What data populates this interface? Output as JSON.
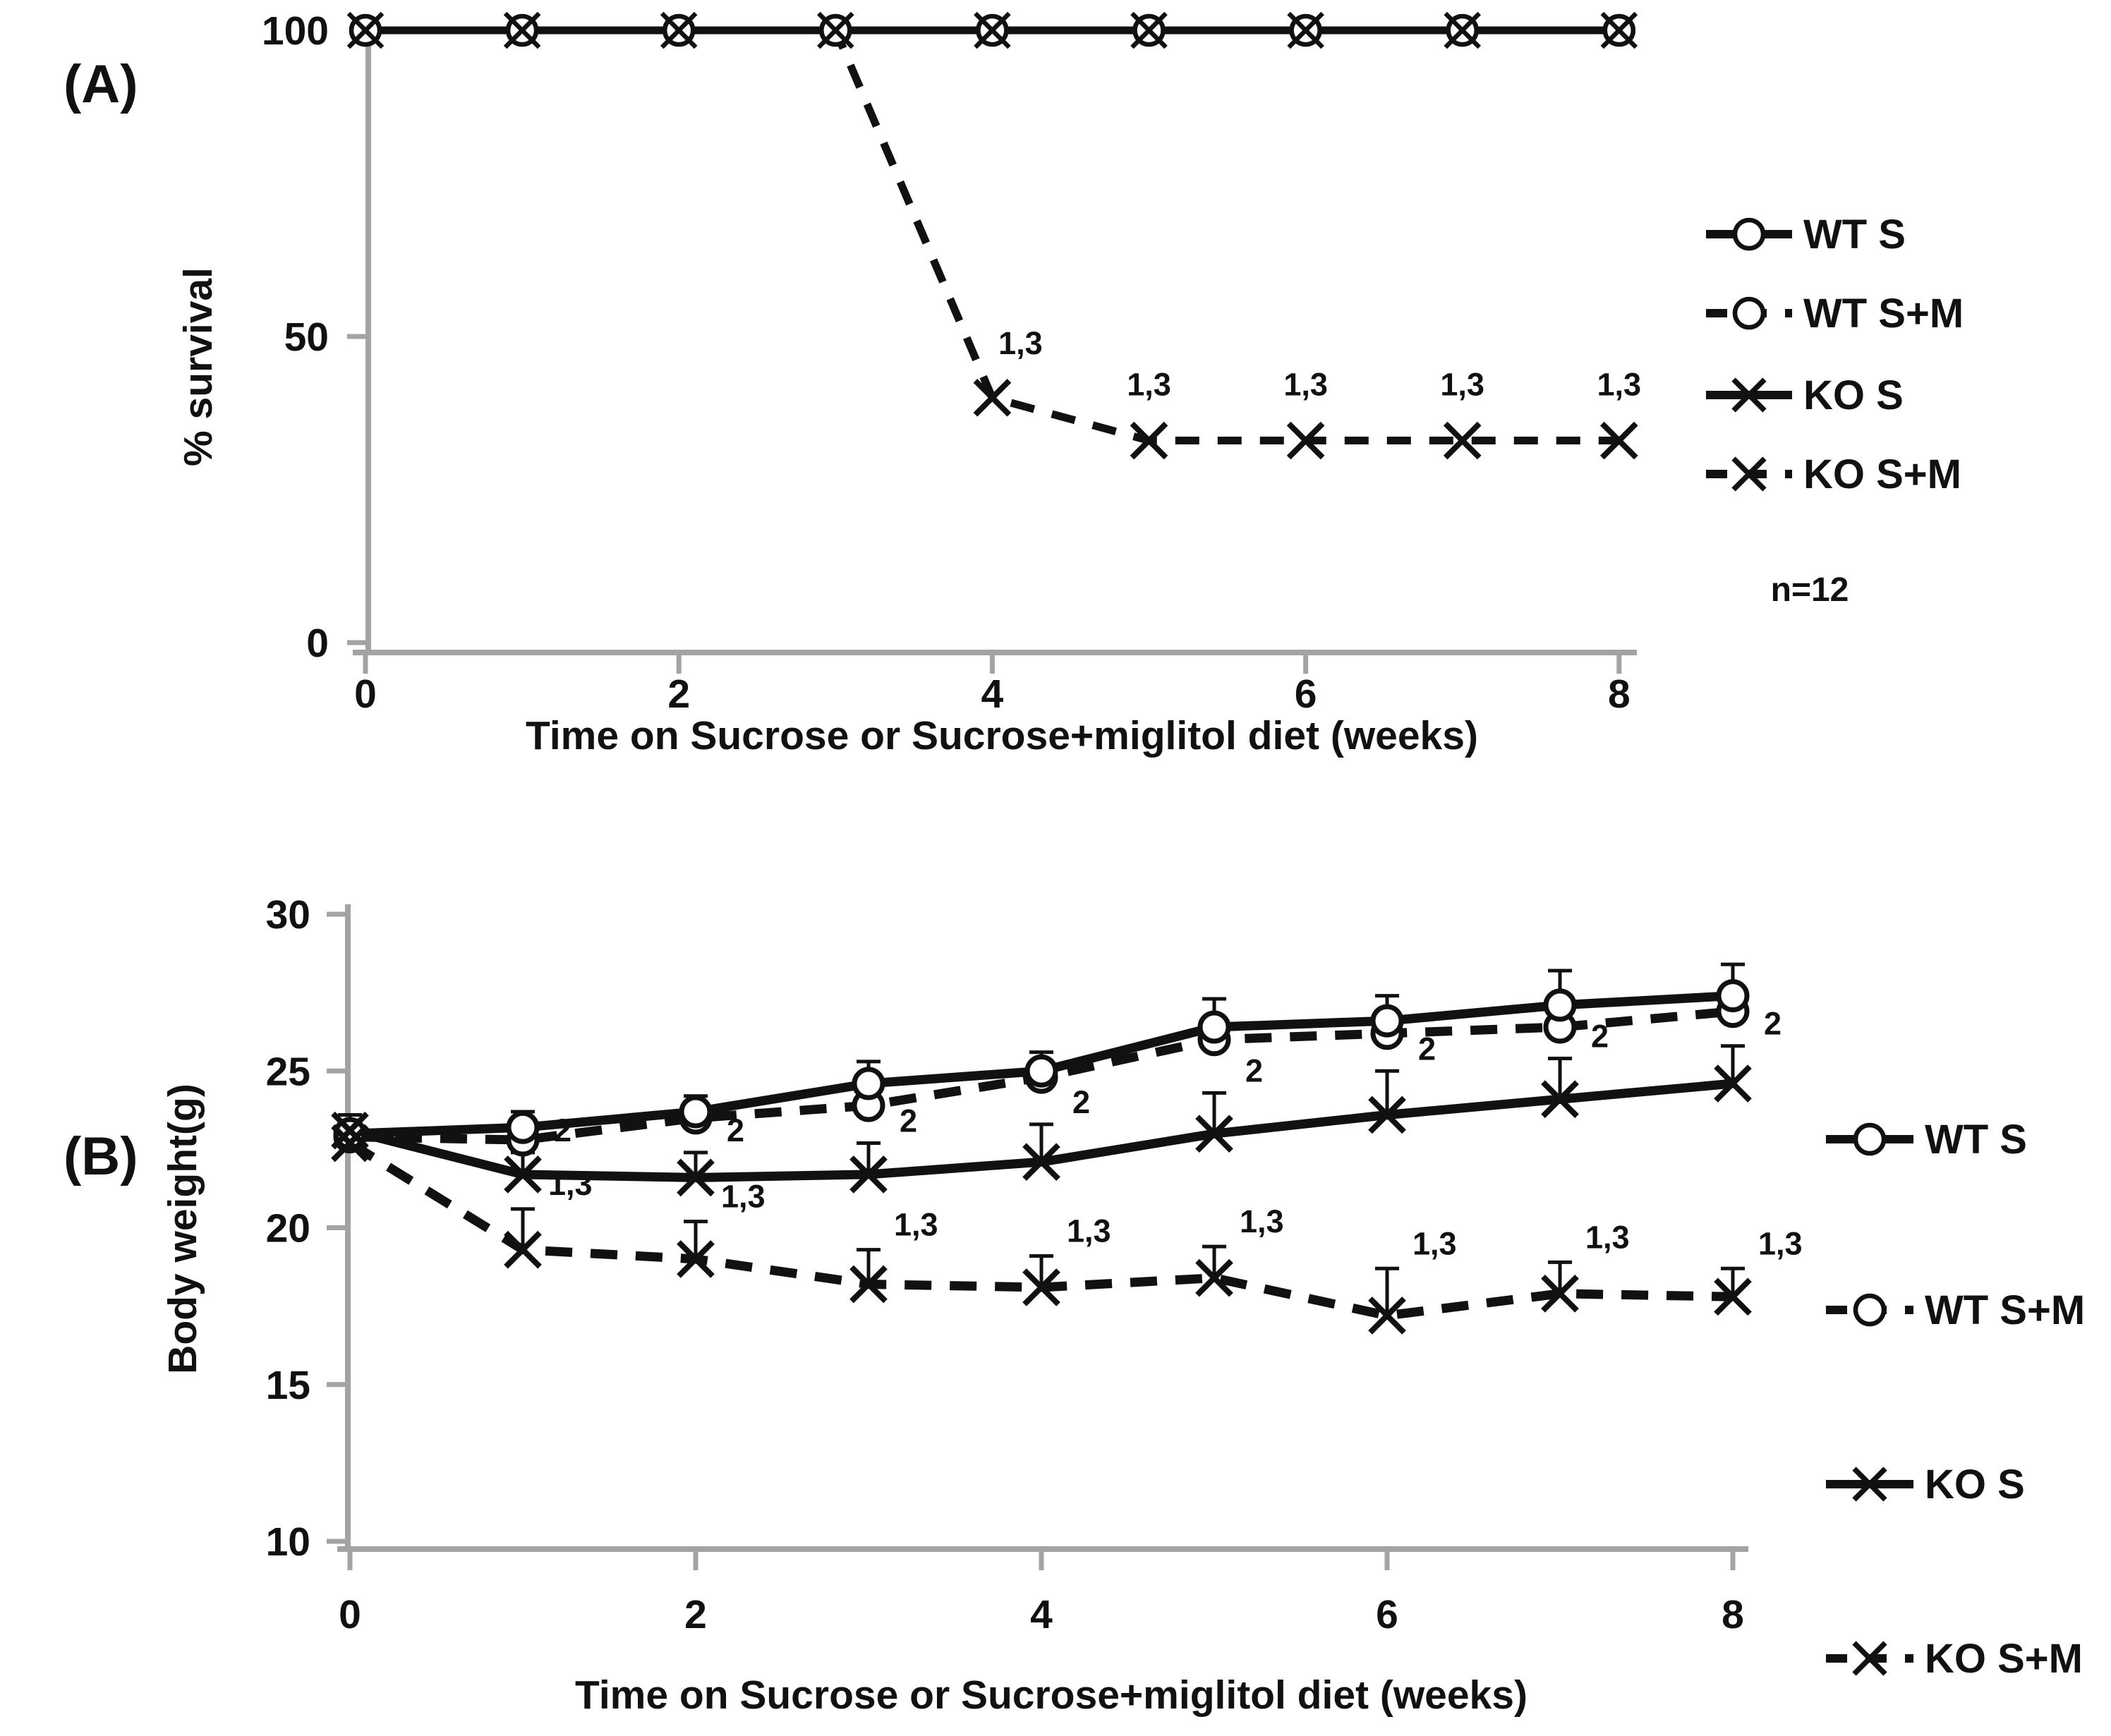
{
  "figure": {
    "panel_a_label": "(A)",
    "panel_b_label": "(B)",
    "note": "n=12"
  },
  "colors": {
    "ink": "#111111",
    "axis": "#a3a3a3",
    "marker_fill": "#ffffff"
  },
  "chart_data": [
    {
      "type": "line",
      "panel": "A",
      "xlabel": "Time on Sucrose or Sucrose+miglitol diet (weeks)",
      "ylabel": "% survival",
      "x": [
        0,
        1,
        2,
        3,
        4,
        5,
        6,
        7,
        8
      ],
      "x_tick_labels": [
        0,
        2,
        4,
        6,
        8
      ],
      "ylim": [
        0,
        100
      ],
      "y_tick_labels": [
        100,
        50,
        0
      ],
      "grid": "off",
      "legend_position": "right",
      "note": "n=12",
      "series": [
        {
          "name": "WT S",
          "line": "solid",
          "marker": "circle",
          "values": [
            100,
            100,
            100,
            100,
            100,
            100,
            100,
            100,
            100
          ]
        },
        {
          "name": "WT S+M",
          "line": "dashed",
          "marker": "circle",
          "values": [
            100,
            100,
            100,
            100,
            100,
            100,
            100,
            100,
            100
          ]
        },
        {
          "name": "KO S",
          "line": "solid",
          "marker": "x",
          "values": [
            100,
            100,
            100,
            100,
            100,
            100,
            100,
            100,
            100
          ]
        },
        {
          "name": "KO S+M",
          "line": "dashed",
          "marker": "x",
          "values": [
            100,
            100,
            100,
            100,
            40,
            33,
            33,
            33,
            33
          ],
          "annotations": [
            {
              "week": 4,
              "text": "1,3"
            },
            {
              "week": 5,
              "text": "1,3"
            },
            {
              "week": 6,
              "text": "1,3"
            },
            {
              "week": 7,
              "text": "1,3"
            },
            {
              "week": 8,
              "text": "1,3"
            }
          ]
        }
      ]
    },
    {
      "type": "line",
      "panel": "B",
      "xlabel": "Time on Sucrose or Sucrose+miglitol diet (weeks)",
      "ylabel": "Body weight(g)",
      "x": [
        0,
        1,
        2,
        3,
        4,
        5,
        6,
        7,
        8
      ],
      "x_tick_labels": [
        0,
        2,
        4,
        6,
        8
      ],
      "ylim": [
        10,
        30
      ],
      "y_tick_labels": [
        30,
        25,
        20,
        15,
        10
      ],
      "grid": "off",
      "legend_position": "right",
      "series": [
        {
          "name": "WT S",
          "line": "solid",
          "marker": "circle",
          "values": [
            23.0,
            23.2,
            23.7,
            24.6,
            25.0,
            26.4,
            26.6,
            27.1,
            27.4
          ],
          "err_up": [
            0.6,
            0.5,
            0.5,
            0.7,
            0.6,
            0.9,
            0.8,
            1.1,
            1.0
          ]
        },
        {
          "name": "WT S+M",
          "line": "dashed",
          "marker": "circle",
          "values": [
            22.9,
            22.8,
            23.5,
            23.9,
            24.8,
            26.0,
            26.2,
            26.4,
            26.9
          ],
          "err_up": [
            0,
            0,
            0,
            0,
            0,
            0,
            0,
            0,
            0
          ]
        },
        {
          "name": "KO S",
          "line": "solid",
          "marker": "x",
          "values": [
            23.1,
            21.7,
            21.6,
            21.7,
            22.1,
            23.0,
            23.6,
            24.1,
            24.6
          ],
          "err_up": [
            0,
            0.7,
            0.8,
            1.0,
            1.2,
            1.3,
            1.4,
            1.3,
            1.2
          ],
          "annotations": [
            {
              "week": 1,
              "text": "2"
            },
            {
              "week": 2,
              "text": "2"
            },
            {
              "week": 3,
              "text": "2"
            },
            {
              "week": 4,
              "text": "2"
            },
            {
              "week": 5,
              "text": "2"
            },
            {
              "week": 6,
              "text": "2"
            },
            {
              "week": 7,
              "text": "2"
            },
            {
              "week": 8,
              "text": "2"
            }
          ]
        },
        {
          "name": "KO S+M",
          "line": "dashed",
          "marker": "x",
          "values": [
            22.7,
            19.3,
            19.0,
            18.2,
            18.1,
            18.4,
            17.2,
            17.9,
            17.8
          ],
          "err_up": [
            0.7,
            1.3,
            1.2,
            1.1,
            1.0,
            1.0,
            1.5,
            1.0,
            0.9
          ],
          "annotations": [
            {
              "week": 1,
              "text": "1,3"
            },
            {
              "week": 2,
              "text": "1,3"
            },
            {
              "week": 3,
              "text": "1,3"
            },
            {
              "week": 4,
              "text": "1,3"
            },
            {
              "week": 5,
              "text": "1,3"
            },
            {
              "week": 6,
              "text": "1,3"
            },
            {
              "week": 7,
              "text": "1,3"
            },
            {
              "week": 8,
              "text": "1,3"
            }
          ]
        }
      ]
    }
  ]
}
